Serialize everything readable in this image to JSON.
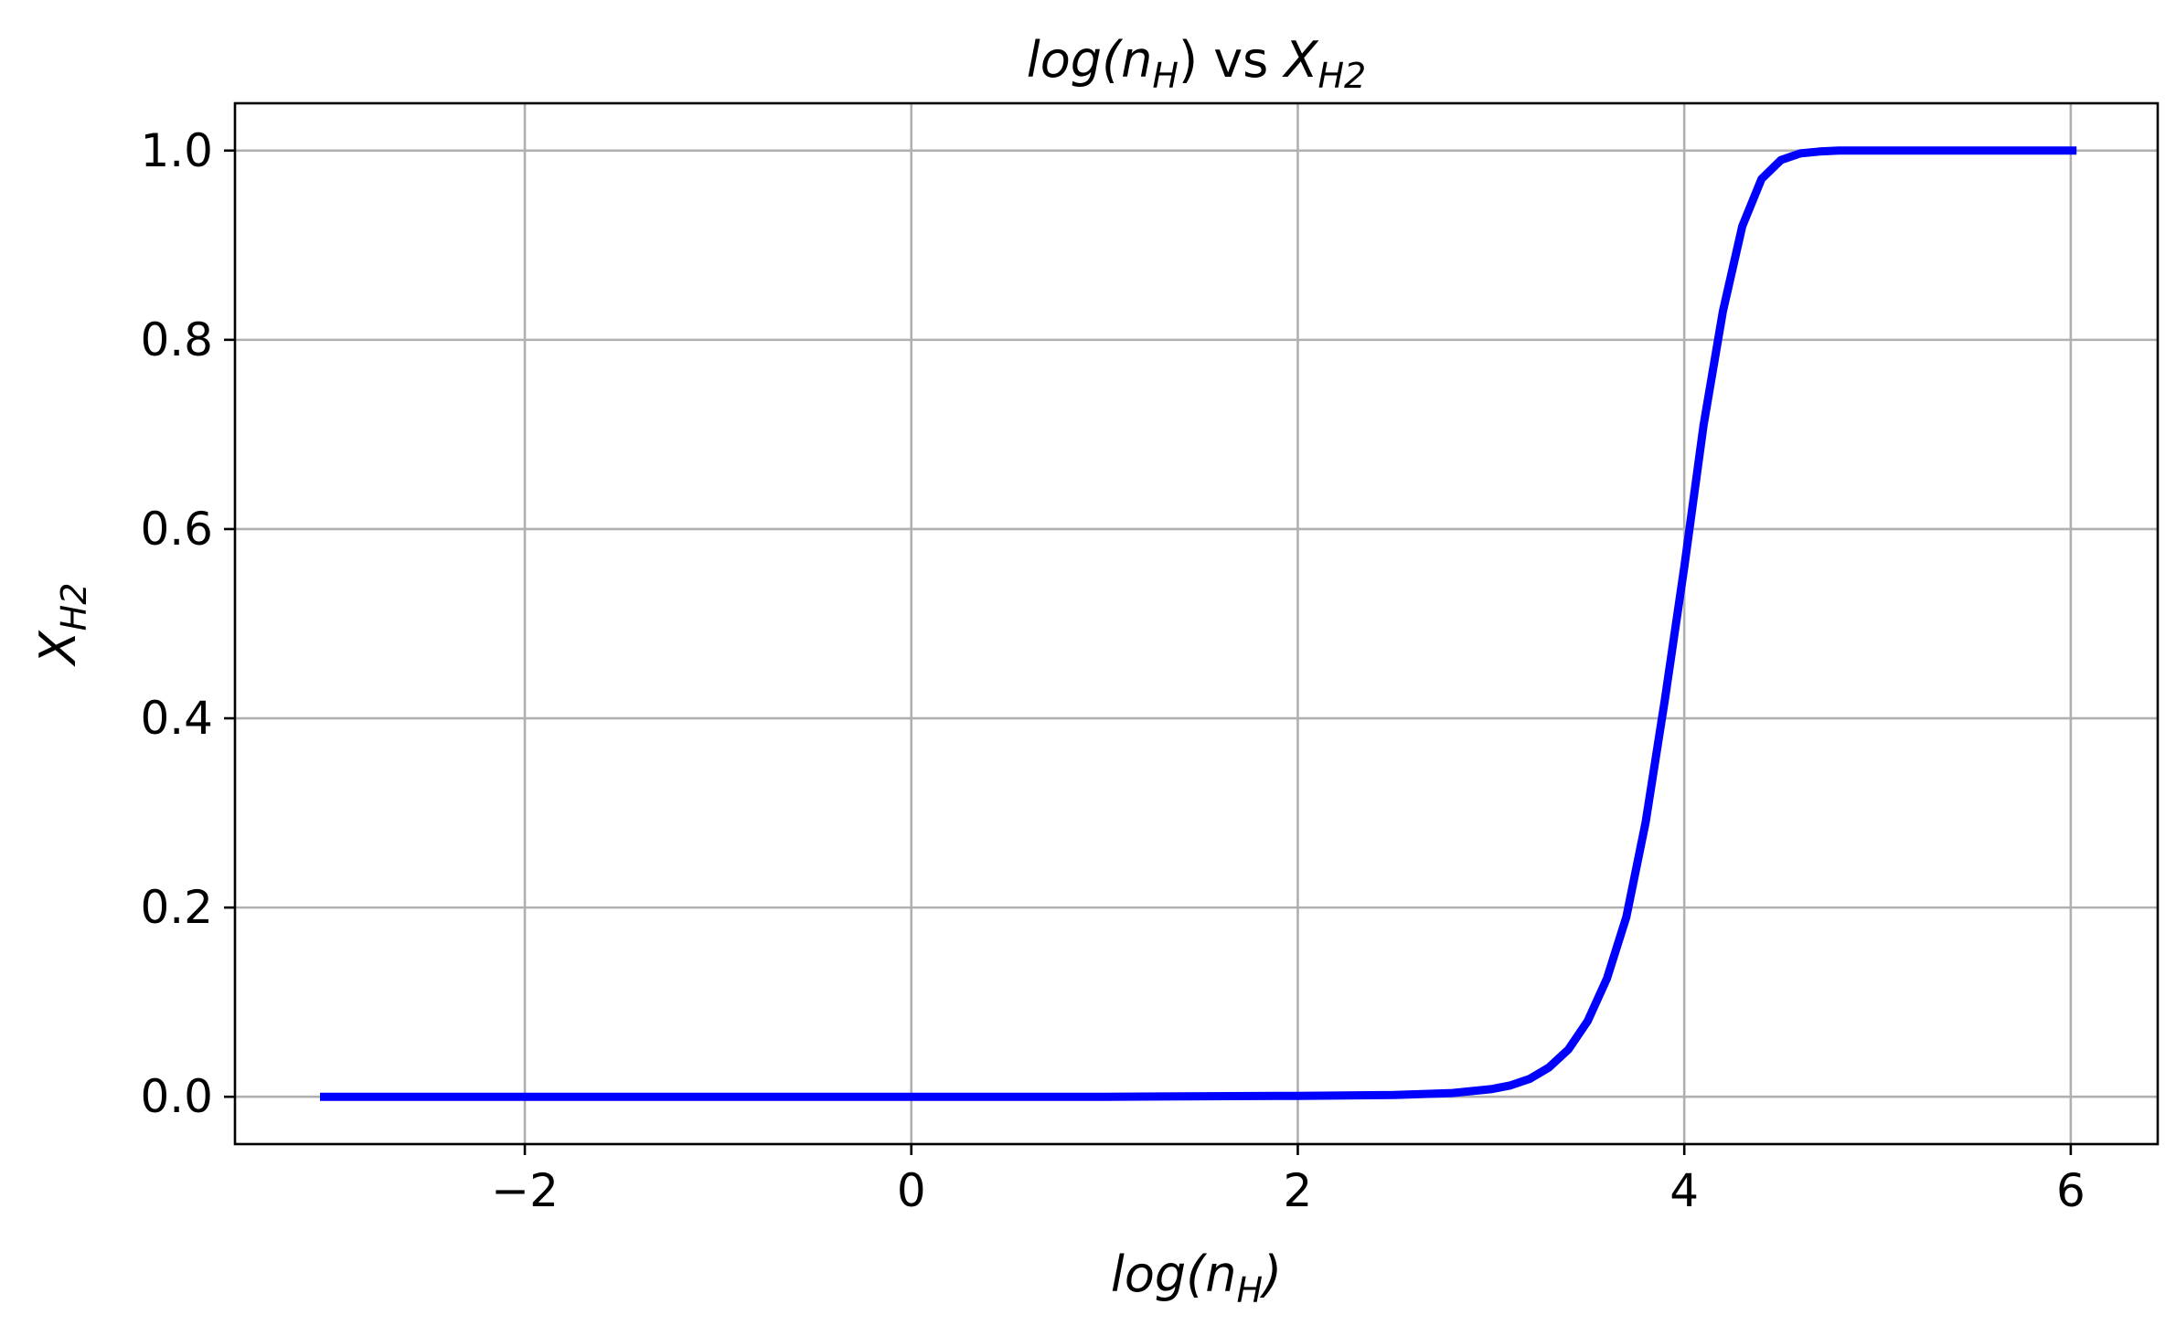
{
  "chart_data": {
    "type": "line",
    "title": {
      "left": "log(n",
      "left_sub": "H",
      "mid": ") vs ",
      "right": "X",
      "right_sub": "H2"
    },
    "xlabel": {
      "main": "log(n",
      "sub": "H",
      "tail": ")"
    },
    "ylabel": {
      "main": "X",
      "sub": "H2"
    },
    "xlim": [
      -3.5,
      6.45
    ],
    "ylim": [
      -0.05,
      1.05
    ],
    "xticks": [
      -2,
      0,
      2,
      4,
      6
    ],
    "xtick_labels": [
      "−2",
      "0",
      "2",
      "4",
      "6"
    ],
    "yticks": [
      0.0,
      0.2,
      0.4,
      0.6,
      0.8,
      1.0
    ],
    "ytick_labels": [
      "0.0",
      "0.2",
      "0.4",
      "0.6",
      "0.8",
      "1.0"
    ],
    "grid": true,
    "series": [
      {
        "color": "#0000ff",
        "x": [
          -3.06,
          -2.0,
          -1.0,
          0.0,
          1.0,
          2.0,
          2.5,
          2.8,
          3.0,
          3.1,
          3.2,
          3.3,
          3.4,
          3.5,
          3.6,
          3.7,
          3.8,
          3.9,
          4.0,
          4.1,
          4.2,
          4.3,
          4.4,
          4.5,
          4.6,
          4.7,
          4.8,
          5.0,
          5.5,
          6.03
        ],
        "y": [
          0.0,
          0.0,
          0.0,
          0.0,
          0.0,
          0.001,
          0.002,
          0.004,
          0.008,
          0.012,
          0.019,
          0.031,
          0.05,
          0.08,
          0.125,
          0.19,
          0.29,
          0.42,
          0.56,
          0.71,
          0.83,
          0.92,
          0.97,
          0.99,
          0.997,
          0.999,
          1.0,
          1.0,
          1.0,
          1.0
        ]
      }
    ]
  }
}
